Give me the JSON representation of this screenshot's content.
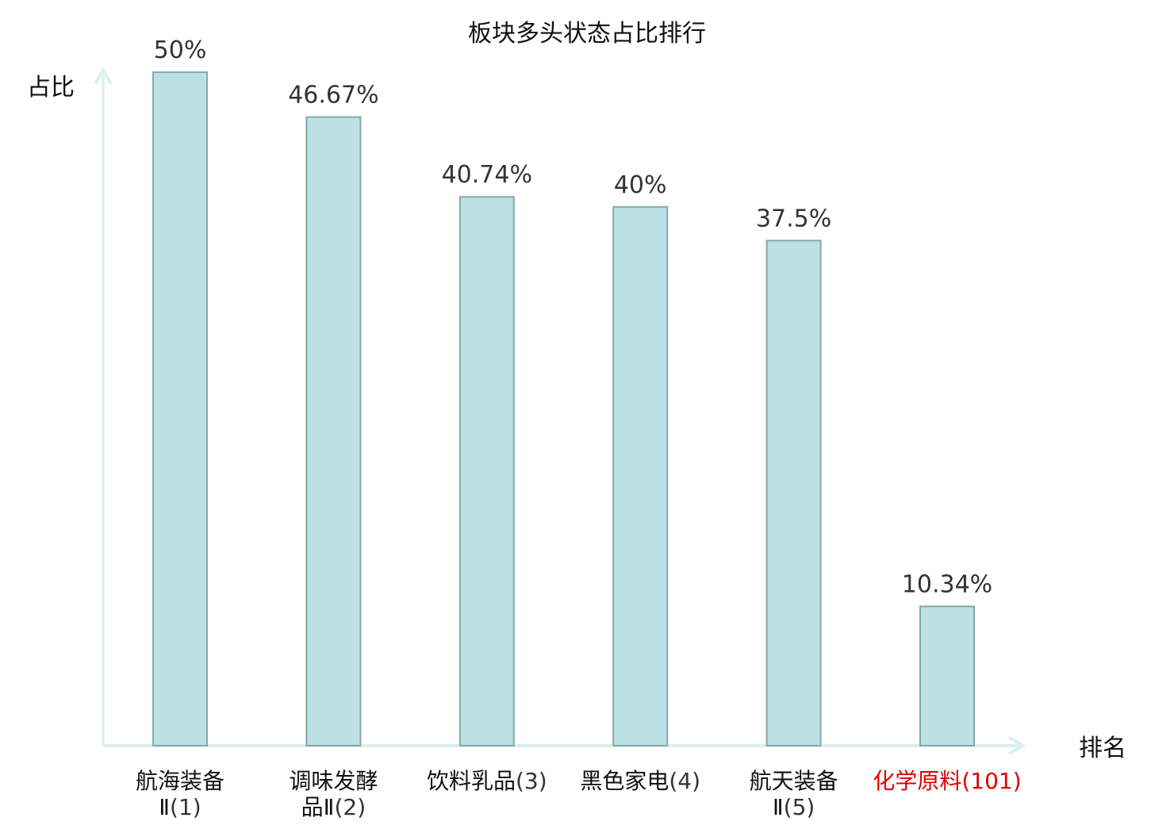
{
  "chart_data": {
    "type": "bar",
    "title": "板块多头状态占比排行",
    "xlabel": "排名",
    "ylabel": "占比",
    "ylim": [
      0,
      50
    ],
    "grid": false,
    "legend": "none",
    "categories": [
      {
        "name_lines": [
          "航海装备",
          "Ⅱ"
        ],
        "rank": "(1)",
        "highlight": false
      },
      {
        "name_lines": [
          "调味发酵",
          "品Ⅱ"
        ],
        "rank": "(2)",
        "highlight": false
      },
      {
        "name_lines": [
          "饮料乳品"
        ],
        "rank": "(3)",
        "highlight": false
      },
      {
        "name_lines": [
          "黑色家电"
        ],
        "rank": "(4)",
        "highlight": false
      },
      {
        "name_lines": [
          "航天装备",
          "Ⅱ"
        ],
        "rank": "(5)",
        "highlight": false
      },
      {
        "name_lines": [
          "化学原料"
        ],
        "rank": "(101)",
        "highlight": true
      }
    ],
    "values": [
      50,
      46.67,
      40.74,
      40,
      37.5,
      10.34
    ],
    "value_labels": [
      "50%",
      "46.67%",
      "40.74%",
      "40%",
      "37.5%",
      "10.34%"
    ],
    "colors": {
      "bar_fill": "#bce0e3",
      "bar_stroke": "#86a8ab",
      "axis": "#dcf1ef",
      "highlight_text": "#e00000",
      "text": "#111111",
      "value_text": "#333333"
    }
  }
}
